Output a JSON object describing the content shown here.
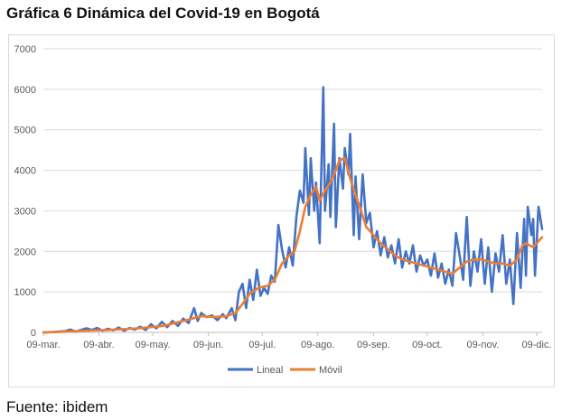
{
  "header": {
    "title": "Gráfica 6 Dinámica del Covid-19 en Bogotá"
  },
  "footer": {
    "source": "Fuente: ibidem"
  },
  "chart_data": {
    "type": "line",
    "title": "Gráfica 6 Dinámica del Covid-19 en Bogotá",
    "xlabel": "",
    "ylabel": "",
    "ylim": [
      0,
      7000
    ],
    "yticks": [
      0,
      1000,
      2000,
      3000,
      4000,
      5000,
      6000,
      7000
    ],
    "xlim": [
      "2020-03-09",
      "2020-12-12"
    ],
    "xtick_labels": [
      "09-mar.",
      "09-abr.",
      "09-may.",
      "09-jun.",
      "09-jul.",
      "09-ago.",
      "09-sep.",
      "09-oct.",
      "09-nov.",
      "09-dic."
    ],
    "xtick_dates": [
      "2020-03-09",
      "2020-04-09",
      "2020-05-09",
      "2020-06-09",
      "2020-07-09",
      "2020-08-09",
      "2020-09-09",
      "2020-10-09",
      "2020-11-09",
      "2020-12-09"
    ],
    "grid": true,
    "legend": "bottom",
    "series": [
      {
        "name": "Lineal",
        "color": "#4472c4",
        "points": [
          [
            "2020-03-09",
            0
          ],
          [
            "2020-03-12",
            5
          ],
          [
            "2020-03-15",
            10
          ],
          [
            "2020-03-18",
            20
          ],
          [
            "2020-03-21",
            30
          ],
          [
            "2020-03-24",
            70
          ],
          [
            "2020-03-27",
            20
          ],
          [
            "2020-03-30",
            60
          ],
          [
            "2020-04-02",
            100
          ],
          [
            "2020-04-05",
            60
          ],
          [
            "2020-04-08",
            110
          ],
          [
            "2020-04-11",
            40
          ],
          [
            "2020-04-14",
            90
          ],
          [
            "2020-04-17",
            50
          ],
          [
            "2020-04-20",
            120
          ],
          [
            "2020-04-23",
            40
          ],
          [
            "2020-04-26",
            110
          ],
          [
            "2020-04-29",
            70
          ],
          [
            "2020-05-02",
            140
          ],
          [
            "2020-05-05",
            60
          ],
          [
            "2020-05-08",
            200
          ],
          [
            "2020-05-11",
            100
          ],
          [
            "2020-05-14",
            260
          ],
          [
            "2020-05-17",
            130
          ],
          [
            "2020-05-20",
            280
          ],
          [
            "2020-05-23",
            160
          ],
          [
            "2020-05-26",
            340
          ],
          [
            "2020-05-29",
            230
          ],
          [
            "2020-06-01",
            600
          ],
          [
            "2020-06-03",
            280
          ],
          [
            "2020-06-05",
            480
          ],
          [
            "2020-06-08",
            380
          ],
          [
            "2020-06-11",
            420
          ],
          [
            "2020-06-14",
            300
          ],
          [
            "2020-06-17",
            450
          ],
          [
            "2020-06-19",
            350
          ],
          [
            "2020-06-22",
            600
          ],
          [
            "2020-06-24",
            300
          ],
          [
            "2020-06-26",
            1000
          ],
          [
            "2020-06-28",
            1200
          ],
          [
            "2020-06-30",
            600
          ],
          [
            "2020-07-02",
            1300
          ],
          [
            "2020-07-04",
            800
          ],
          [
            "2020-07-06",
            1550
          ],
          [
            "2020-07-08",
            900
          ],
          [
            "2020-07-10",
            1100
          ],
          [
            "2020-07-12",
            950
          ],
          [
            "2020-07-14",
            1400
          ],
          [
            "2020-07-16",
            1250
          ],
          [
            "2020-07-18",
            2650
          ],
          [
            "2020-07-20",
            2050
          ],
          [
            "2020-07-22",
            1600
          ],
          [
            "2020-07-24",
            2100
          ],
          [
            "2020-07-26",
            1650
          ],
          [
            "2020-07-28",
            2850
          ],
          [
            "2020-07-30",
            3500
          ],
          [
            "2020-08-01",
            3200
          ],
          [
            "2020-08-02",
            4550
          ],
          [
            "2020-08-04",
            2900
          ],
          [
            "2020-08-05",
            4300
          ],
          [
            "2020-08-07",
            3000
          ],
          [
            "2020-08-08",
            3700
          ],
          [
            "2020-08-10",
            2200
          ],
          [
            "2020-08-12",
            6050
          ],
          [
            "2020-08-13",
            3000
          ],
          [
            "2020-08-15",
            4150
          ],
          [
            "2020-08-16",
            2850
          ],
          [
            "2020-08-18",
            5150
          ],
          [
            "2020-08-19",
            2600
          ],
          [
            "2020-08-21",
            4300
          ],
          [
            "2020-08-23",
            3550
          ],
          [
            "2020-08-24",
            4550
          ],
          [
            "2020-08-26",
            3900
          ],
          [
            "2020-08-27",
            4900
          ],
          [
            "2020-08-29",
            2400
          ],
          [
            "2020-08-30",
            3850
          ],
          [
            "2020-09-01",
            2300
          ],
          [
            "2020-09-03",
            3900
          ],
          [
            "2020-09-05",
            2700
          ],
          [
            "2020-09-07",
            2950
          ],
          [
            "2020-09-09",
            2100
          ],
          [
            "2020-09-11",
            2500
          ],
          [
            "2020-09-13",
            1900
          ],
          [
            "2020-09-15",
            2350
          ],
          [
            "2020-09-17",
            1850
          ],
          [
            "2020-09-19",
            2150
          ],
          [
            "2020-09-21",
            1700
          ],
          [
            "2020-09-23",
            2300
          ],
          [
            "2020-09-25",
            1600
          ],
          [
            "2020-09-27",
            2000
          ],
          [
            "2020-09-29",
            1700
          ],
          [
            "2020-10-01",
            2150
          ],
          [
            "2020-10-03",
            1500
          ],
          [
            "2020-10-05",
            1900
          ],
          [
            "2020-10-07",
            1650
          ],
          [
            "2020-10-09",
            1800
          ],
          [
            "2020-10-11",
            1400
          ],
          [
            "2020-10-13",
            1950
          ],
          [
            "2020-10-15",
            1350
          ],
          [
            "2020-10-17",
            1700
          ],
          [
            "2020-10-19",
            1200
          ],
          [
            "2020-10-21",
            1550
          ],
          [
            "2020-10-23",
            1150
          ],
          [
            "2020-10-25",
            2450
          ],
          [
            "2020-10-27",
            1900
          ],
          [
            "2020-10-29",
            1300
          ],
          [
            "2020-10-31",
            2850
          ],
          [
            "2020-11-02",
            1150
          ],
          [
            "2020-11-04",
            2000
          ],
          [
            "2020-11-06",
            1500
          ],
          [
            "2020-11-08",
            2300
          ],
          [
            "2020-11-10",
            1200
          ],
          [
            "2020-11-12",
            2100
          ],
          [
            "2020-11-14",
            1000
          ],
          [
            "2020-11-16",
            1950
          ],
          [
            "2020-11-18",
            1500
          ],
          [
            "2020-11-20",
            2400
          ],
          [
            "2020-11-22",
            1200
          ],
          [
            "2020-11-24",
            1800
          ],
          [
            "2020-11-26",
            700
          ],
          [
            "2020-11-28",
            2450
          ],
          [
            "2020-11-30",
            1100
          ],
          [
            "2020-12-02",
            2800
          ],
          [
            "2020-12-03",
            1400
          ],
          [
            "2020-12-04",
            3100
          ],
          [
            "2020-12-06",
            2400
          ],
          [
            "2020-12-07",
            2800
          ],
          [
            "2020-12-08",
            1400
          ],
          [
            "2020-12-10",
            3100
          ],
          [
            "2020-12-12",
            2550
          ]
        ]
      },
      {
        "name": "Móvil",
        "color": "#ed7d31",
        "points": [
          [
            "2020-03-09",
            0
          ],
          [
            "2020-03-20",
            15
          ],
          [
            "2020-04-01",
            40
          ],
          [
            "2020-04-15",
            60
          ],
          [
            "2020-05-01",
            100
          ],
          [
            "2020-05-15",
            160
          ],
          [
            "2020-06-01",
            350
          ],
          [
            "2020-06-05",
            400
          ],
          [
            "2020-06-12",
            380
          ],
          [
            "2020-06-19",
            400
          ],
          [
            "2020-06-24",
            480
          ],
          [
            "2020-06-28",
            700
          ],
          [
            "2020-07-02",
            950
          ],
          [
            "2020-07-07",
            1100
          ],
          [
            "2020-07-12",
            1150
          ],
          [
            "2020-07-16",
            1300
          ],
          [
            "2020-07-20",
            1700
          ],
          [
            "2020-07-24",
            1900
          ],
          [
            "2020-07-27",
            2000
          ],
          [
            "2020-07-30",
            2500
          ],
          [
            "2020-08-02",
            3100
          ],
          [
            "2020-08-05",
            3400
          ],
          [
            "2020-08-08",
            3600
          ],
          [
            "2020-08-10",
            3250
          ],
          [
            "2020-08-13",
            3500
          ],
          [
            "2020-08-16",
            3700
          ],
          [
            "2020-08-19",
            4000
          ],
          [
            "2020-08-21",
            4250
          ],
          [
            "2020-08-24",
            4300
          ],
          [
            "2020-08-27",
            3800
          ],
          [
            "2020-08-30",
            3400
          ],
          [
            "2020-09-02",
            3000
          ],
          [
            "2020-09-05",
            2600
          ],
          [
            "2020-09-09",
            2400
          ],
          [
            "2020-09-13",
            2200
          ],
          [
            "2020-09-17",
            2050
          ],
          [
            "2020-09-21",
            1900
          ],
          [
            "2020-09-25",
            1800
          ],
          [
            "2020-09-29",
            1750
          ],
          [
            "2020-10-03",
            1700
          ],
          [
            "2020-10-07",
            1650
          ],
          [
            "2020-10-11",
            1600
          ],
          [
            "2020-10-15",
            1550
          ],
          [
            "2020-10-19",
            1500
          ],
          [
            "2020-10-23",
            1450
          ],
          [
            "2020-10-27",
            1600
          ],
          [
            "2020-10-31",
            1750
          ],
          [
            "2020-11-04",
            1800
          ],
          [
            "2020-11-08",
            1800
          ],
          [
            "2020-11-12",
            1750
          ],
          [
            "2020-11-16",
            1700
          ],
          [
            "2020-11-20",
            1700
          ],
          [
            "2020-11-24",
            1650
          ],
          [
            "2020-11-28",
            1800
          ],
          [
            "2020-12-01",
            2150
          ],
          [
            "2020-12-03",
            2200
          ],
          [
            "2020-12-05",
            2150
          ],
          [
            "2020-12-07",
            2100
          ],
          [
            "2020-12-09",
            2200
          ],
          [
            "2020-12-12",
            2350
          ]
        ]
      }
    ]
  }
}
